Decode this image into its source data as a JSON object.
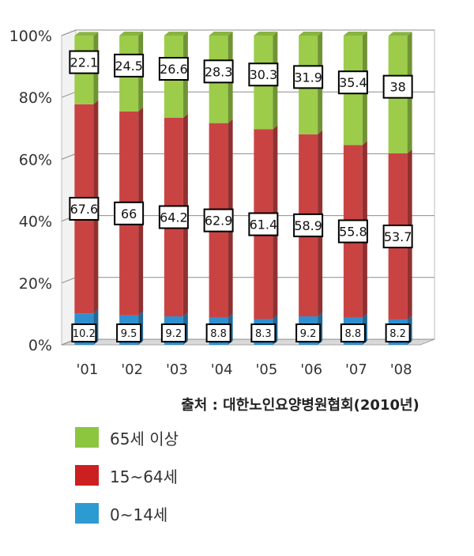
{
  "chart_data": {
    "type": "bar",
    "stacked": true,
    "percent": true,
    "categories": [
      "'01",
      "'02",
      "'03",
      "'04",
      "'05",
      "'06",
      "'07",
      "'08"
    ],
    "series": [
      {
        "name": "0~14세",
        "color": "#2f8fcf",
        "values": [
          10.2,
          9.5,
          9.2,
          8.8,
          8.3,
          9.2,
          8.8,
          8.2
        ]
      },
      {
        "name": "15~64세",
        "color": "#c94343",
        "values": [
          67.6,
          66,
          64.2,
          62.9,
          61.4,
          58.9,
          55.8,
          53.7
        ]
      },
      {
        "name": "65세 이상",
        "color": "#9ccc4a",
        "values": [
          22.1,
          24.5,
          26.6,
          28.3,
          30.3,
          31.9,
          35.4,
          38
        ]
      }
    ],
    "ylim": [
      0,
      100
    ],
    "y_ticks": [
      "0%",
      "20%",
      "40%",
      "60%",
      "80%",
      "100%"
    ],
    "grid": true,
    "legend_placement": "bottom-left"
  },
  "source_note": "출처 : 대한노인요양병원협회(2010년)",
  "legend": [
    {
      "label": "65세 이상",
      "color": "#8cc63f"
    },
    {
      "label": "15~64세",
      "color": "#cc1f1f"
    },
    {
      "label": "0~14세",
      "color": "#2d9bd1"
    }
  ]
}
